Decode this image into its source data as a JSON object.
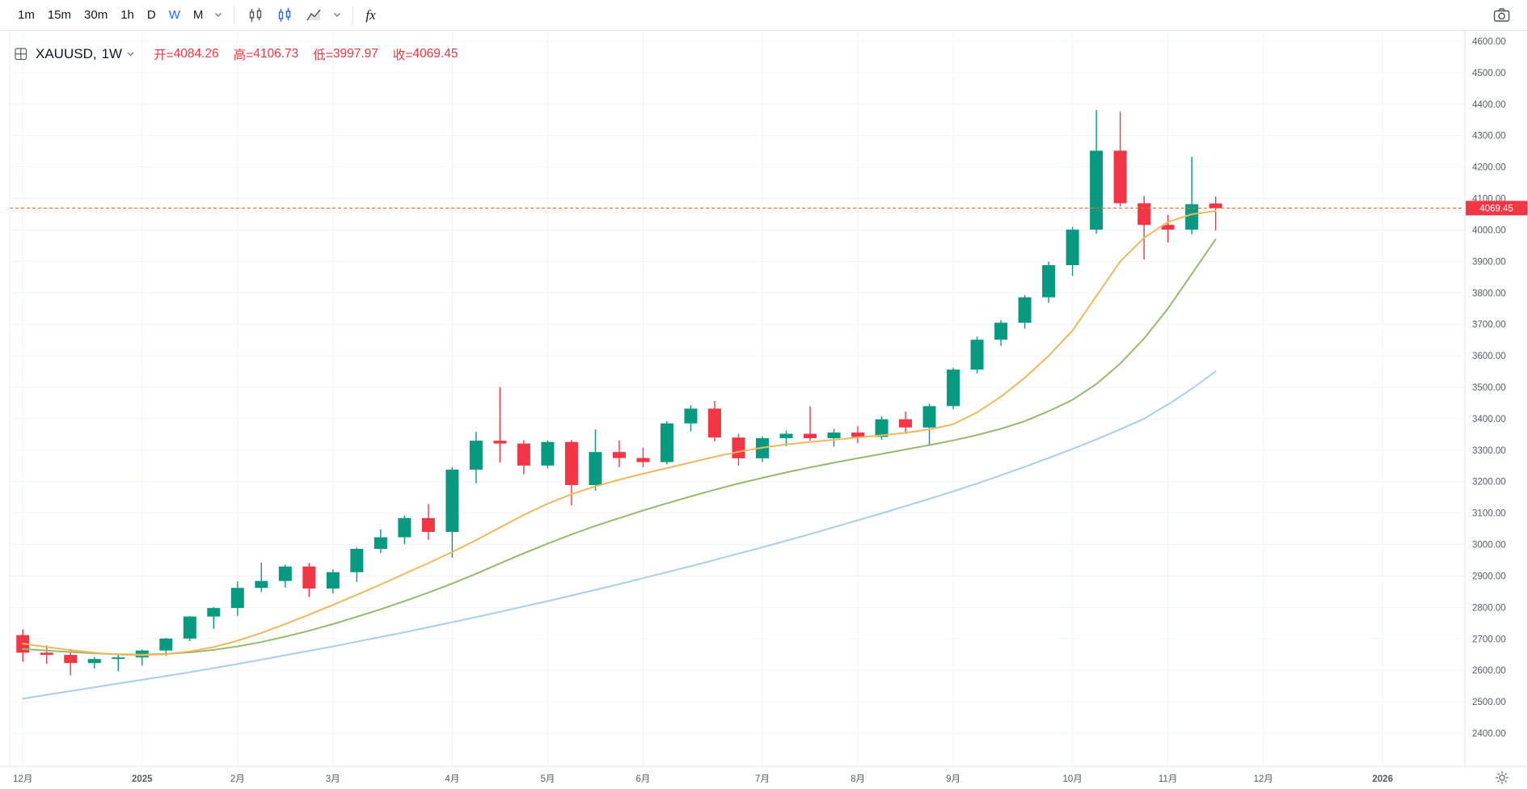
{
  "toolbar": {
    "intervals": [
      "1m",
      "15m",
      "30m",
      "1h",
      "D",
      "W",
      "M"
    ],
    "active_interval": "W",
    "indicators_label": "fx",
    "icons": [
      "interval-chevron",
      "candles-style",
      "hollow-candles-style",
      "area-style",
      "style-chevron",
      "fx-indicators",
      "camera-snapshot",
      "settings-gear"
    ]
  },
  "symbol_header": {
    "grid_icon": "symbol-grid",
    "symbol_label": "XAUUSD,",
    "interval_label": "1W",
    "ohlc": {
      "open_label": "开=",
      "open_value": "4084.26",
      "high_label": "高=",
      "high_value": "4106.73",
      "low_label": "低=",
      "low_value": "3997.97",
      "close_label": "收=",
      "close_value": "4069.45",
      "color": "#f23645"
    }
  },
  "chart_data": {
    "type": "candlestick",
    "symbol": "XAUUSD",
    "timeframe": "1W",
    "title": "XAUUSD weekly candlestick chart with three moving averages",
    "y_axis": {
      "min": 2400,
      "max": 4600,
      "step": 100,
      "ticks": [
        "4600.00",
        "4500.00",
        "4400.00",
        "4300.00",
        "4200.00",
        "4100.00",
        "4000.00",
        "3900.00",
        "3800.00",
        "3700.00",
        "3600.00",
        "3500.00",
        "3400.00",
        "3300.00",
        "3200.00",
        "3100.00",
        "3000.00",
        "2900.00",
        "2800.00",
        "2700.00",
        "2600.00",
        "2500.00",
        "2400.00"
      ]
    },
    "x_axis": {
      "total_slots": 61,
      "ticks": [
        {
          "label": "12月",
          "slot": 0
        },
        {
          "label": "2025",
          "slot": 5
        },
        {
          "label": "2月",
          "slot": 9
        },
        {
          "label": "3月",
          "slot": 13
        },
        {
          "label": "4月",
          "slot": 18
        },
        {
          "label": "5月",
          "slot": 22
        },
        {
          "label": "6月",
          "slot": 26
        },
        {
          "label": "7月",
          "slot": 31
        },
        {
          "label": "8月",
          "slot": 35
        },
        {
          "label": "9月",
          "slot": 39
        },
        {
          "label": "10月",
          "slot": 44
        },
        {
          "label": "11月",
          "slot": 48
        },
        {
          "label": "12月",
          "slot": 52
        },
        {
          "label": "2026",
          "slot": 57
        }
      ]
    },
    "current_price": {
      "value": 4069.45,
      "label": "4069.45",
      "line_color": "#fa6a33",
      "label_color": "#f23645"
    },
    "colors": {
      "up": "#089981",
      "down": "#f23645",
      "grid": "#f0f3fa",
      "axis_text": "#555a64",
      "axis_border": "#e0e3eb"
    },
    "candles_format": [
      "week_of",
      "open",
      "high",
      "low",
      "close"
    ],
    "candles": [
      [
        "2024-12-02",
        2712,
        2730,
        2627,
        2656
      ],
      [
        "2024-12-09",
        2656,
        2679,
        2621,
        2649
      ],
      [
        "2024-12-16",
        2649,
        2668,
        2584,
        2623
      ],
      [
        "2024-12-23",
        2623,
        2642,
        2606,
        2636
      ],
      [
        "2024-12-30",
        2636,
        2650,
        2597,
        2641
      ],
      [
        "2025-01-06",
        2641,
        2666,
        2615,
        2663
      ],
      [
        "2025-01-13",
        2663,
        2703,
        2646,
        2701
      ],
      [
        "2025-01-20",
        2701,
        2773,
        2693,
        2771
      ],
      [
        "2025-01-27",
        2771,
        2801,
        2732,
        2798
      ],
      [
        "2025-02-03",
        2798,
        2883,
        2773,
        2862
      ],
      [
        "2025-02-10",
        2862,
        2943,
        2849,
        2884
      ],
      [
        "2025-02-17",
        2884,
        2936,
        2863,
        2930
      ],
      [
        "2025-02-24",
        2930,
        2941,
        2833,
        2860
      ],
      [
        "2025-03-03",
        2860,
        2921,
        2844,
        2912
      ],
      [
        "2025-03-10",
        2912,
        2991,
        2881,
        2986
      ],
      [
        "2025-03-17",
        2986,
        3048,
        2973,
        3023
      ],
      [
        "2025-03-24",
        3023,
        3092,
        3001,
        3084
      ],
      [
        "2025-03-31",
        3084,
        3129,
        3015,
        3040
      ],
      [
        "2025-04-07",
        3040,
        3246,
        2958,
        3238
      ],
      [
        "2025-04-14",
        3238,
        3358,
        3194,
        3330
      ],
      [
        "2025-04-21",
        3330,
        3500,
        3261,
        3321
      ],
      [
        "2025-04-28",
        3321,
        3332,
        3223,
        3251
      ],
      [
        "2025-05-05",
        3251,
        3331,
        3241,
        3326
      ],
      [
        "2025-05-12",
        3326,
        3333,
        3124,
        3189
      ],
      [
        "2025-05-19",
        3189,
        3366,
        3171,
        3294
      ],
      [
        "2025-05-26",
        3294,
        3331,
        3246,
        3275
      ],
      [
        "2025-06-02",
        3275,
        3308,
        3245,
        3262
      ],
      [
        "2025-06-09",
        3262,
        3392,
        3255,
        3385
      ],
      [
        "2025-06-16",
        3385,
        3443,
        3360,
        3432
      ],
      [
        "2025-06-23",
        3432,
        3456,
        3328,
        3340
      ],
      [
        "2025-06-30",
        3340,
        3352,
        3251,
        3274
      ],
      [
        "2025-07-07",
        3274,
        3344,
        3262,
        3338
      ],
      [
        "2025-07-14",
        3338,
        3362,
        3312,
        3352
      ],
      [
        "2025-07-21",
        3352,
        3439,
        3330,
        3338
      ],
      [
        "2025-07-28",
        3338,
        3368,
        3311,
        3356
      ],
      [
        "2025-08-04",
        3356,
        3376,
        3322,
        3342
      ],
      [
        "2025-08-11",
        3342,
        3408,
        3333,
        3398
      ],
      [
        "2025-08-18",
        3398,
        3423,
        3352,
        3372
      ],
      [
        "2025-08-25",
        3372,
        3448,
        3315,
        3440
      ],
      [
        "2025-09-01",
        3440,
        3562,
        3430,
        3556
      ],
      [
        "2025-09-08",
        3556,
        3661,
        3544,
        3651
      ],
      [
        "2025-09-15",
        3651,
        3713,
        3632,
        3705
      ],
      [
        "2025-09-22",
        3705,
        3793,
        3686,
        3786
      ],
      [
        "2025-09-29",
        3786,
        3899,
        3768,
        3888
      ],
      [
        "2025-10-06",
        3888,
        4010,
        3854,
        4001
      ],
      [
        "2025-10-13",
        4001,
        4381,
        3988,
        4252
      ],
      [
        "2025-10-20",
        4252,
        4376,
        4075,
        4085
      ],
      [
        "2025-10-27",
        4085,
        4108,
        3906,
        4016
      ],
      [
        "2025-11-03",
        4016,
        4048,
        3960,
        4001
      ],
      [
        "2025-11-10",
        4001,
        4232,
        3986,
        4082
      ],
      [
        "2025-11-17",
        4084.26,
        4106.73,
        3997.97,
        4069.45
      ]
    ],
    "ma_lines": [
      {
        "name": "ma-fast",
        "color": "#f0b85c",
        "values": [
          2685,
          2674,
          2664,
          2656,
          2650,
          2648,
          2651,
          2660,
          2674,
          2694,
          2719,
          2747,
          2777,
          2808,
          2840,
          2873,
          2907,
          2941,
          2976,
          3014,
          3054,
          3094,
          3130,
          3160,
          3185,
          3206,
          3225,
          3243,
          3261,
          3279,
          3295,
          3308,
          3318,
          3326,
          3333,
          3340,
          3347,
          3355,
          3366,
          3382,
          3420,
          3470,
          3530,
          3600,
          3680,
          3790,
          3900,
          3975,
          4025,
          4050,
          4060
        ]
      },
      {
        "name": "ma-mid",
        "color": "#96ba6e",
        "values": [
          2668,
          2663,
          2658,
          2654,
          2651,
          2650,
          2652,
          2657,
          2665,
          2676,
          2690,
          2707,
          2726,
          2747,
          2770,
          2794,
          2820,
          2847,
          2876,
          2907,
          2940,
          2972,
          3003,
          3032,
          3059,
          3084,
          3108,
          3131,
          3153,
          3174,
          3194,
          3212,
          3229,
          3245,
          3260,
          3274,
          3288,
          3302,
          3316,
          3331,
          3348,
          3368,
          3392,
          3424,
          3460,
          3510,
          3575,
          3655,
          3750,
          3860,
          3970
        ]
      },
      {
        "name": "ma-slow",
        "color": "#a9cfe6",
        "values": [
          2510,
          2522,
          2534,
          2546,
          2558,
          2570,
          2582,
          2594,
          2607,
          2620,
          2634,
          2648,
          2662,
          2676,
          2691,
          2706,
          2721,
          2737,
          2753,
          2769,
          2786,
          2803,
          2820,
          2838,
          2856,
          2874,
          2893,
          2912,
          2931,
          2951,
          2971,
          2991,
          3012,
          3033,
          3055,
          3077,
          3099,
          3122,
          3145,
          3169,
          3194,
          3220,
          3247,
          3275,
          3304,
          3334,
          3366,
          3400,
          3445,
          3495,
          3550
        ]
      }
    ]
  }
}
